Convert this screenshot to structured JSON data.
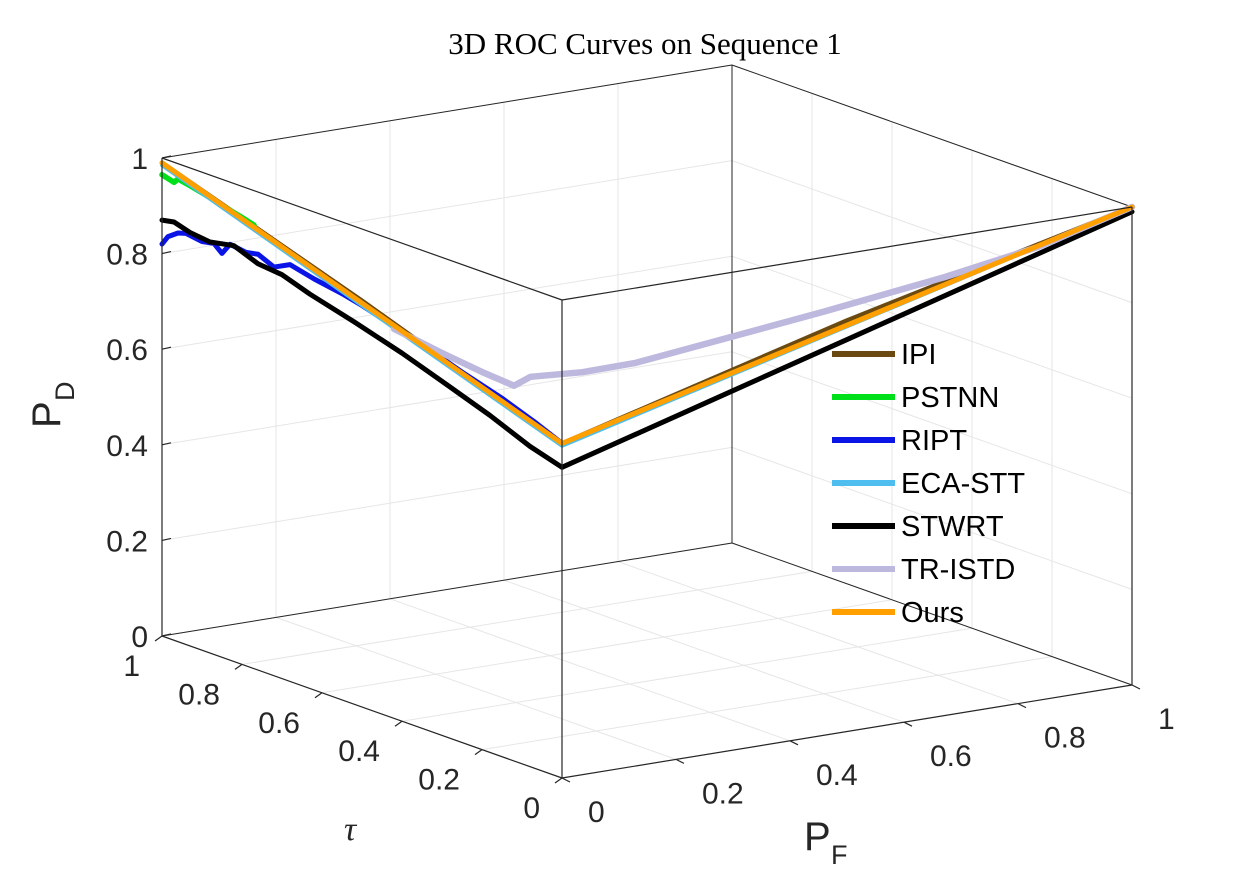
{
  "chart_data": {
    "type": "line",
    "title": "3D ROC Curves on Sequence 1",
    "axes": {
      "x": {
        "label": "P",
        "subscript": "F",
        "range": [
          0,
          1
        ],
        "ticks": [
          "0",
          "0.2",
          "0.4",
          "0.6",
          "0.8",
          "1"
        ]
      },
      "y": {
        "label": "τ",
        "range": [
          0,
          1
        ],
        "ticks": [
          "0",
          "0.2",
          "0.4",
          "0.6",
          "0.8",
          "1"
        ]
      },
      "z": {
        "label": "P",
        "subscript": "D",
        "range": [
          0,
          1
        ],
        "ticks": [
          "0",
          "0.2",
          "0.4",
          "0.6",
          "0.8",
          "1"
        ]
      }
    },
    "grid": true,
    "legend_position": "right",
    "series": [
      {
        "name": "IPI",
        "color": "#6B4A12",
        "width": 4.5,
        "points": [
          [
            0,
            1,
            0.99
          ],
          [
            0,
            0.5,
            0.85
          ],
          [
            0,
            0,
            0.7
          ],
          [
            0.5,
            0,
            0.86
          ],
          [
            1,
            0,
            1
          ]
        ]
      },
      {
        "name": "PSTNN",
        "color": "#00E01A",
        "width": 5.5,
        "points": [
          [
            0,
            1,
            0.965
          ],
          [
            0,
            0.97,
            0.958
          ],
          [
            0,
            0.96,
            0.968
          ],
          [
            0,
            0.93,
            0.963
          ],
          [
            0,
            0.88,
            0.953
          ],
          [
            0,
            0.84,
            0.943
          ],
          [
            0,
            0.8,
            0.935
          ],
          [
            0,
            0.77,
            0.928
          ]
        ]
      },
      {
        "name": "RIPT",
        "color": "#0A14E6",
        "width": 5,
        "points": [
          [
            0,
            1,
            0.82
          ],
          [
            0,
            0.985,
            0.84
          ],
          [
            0,
            0.96,
            0.855
          ],
          [
            0,
            0.94,
            0.86
          ],
          [
            0,
            0.9,
            0.855
          ],
          [
            0,
            0.87,
            0.86
          ],
          [
            0,
            0.85,
            0.845
          ],
          [
            0,
            0.83,
            0.87
          ],
          [
            0,
            0.79,
            0.865
          ],
          [
            0,
            0.76,
            0.87
          ],
          [
            0,
            0.72,
            0.855
          ],
          [
            0,
            0.68,
            0.872
          ],
          [
            0,
            0.62,
            0.86
          ],
          [
            0,
            0.55,
            0.85
          ],
          [
            0,
            0.5,
            0.84
          ],
          [
            0,
            0.42,
            0.82
          ],
          [
            0,
            0.34,
            0.8
          ],
          [
            0,
            0.25,
            0.775
          ],
          [
            0,
            0.15,
            0.75
          ],
          [
            0,
            0.07,
            0.725
          ],
          [
            0,
            0,
            0.7
          ]
        ]
      },
      {
        "name": "ECA-STT",
        "color": "#4DBEEE",
        "width": 4,
        "points": [
          [
            0,
            1,
            0.985
          ],
          [
            0,
            0,
            0.695
          ],
          [
            1,
            0,
            1
          ]
        ]
      },
      {
        "name": "STWRT",
        "color": "#000000",
        "width": 5,
        "points": [
          [
            0,
            1,
            0.87
          ],
          [
            0,
            0.97,
            0.875
          ],
          [
            0,
            0.93,
            0.865
          ],
          [
            0,
            0.88,
            0.86
          ],
          [
            0,
            0.82,
            0.87
          ],
          [
            0,
            0.76,
            0.85
          ],
          [
            0,
            0.7,
            0.845
          ],
          [
            0,
            0.63,
            0.825
          ],
          [
            0,
            0.52,
            0.8
          ],
          [
            0,
            0.4,
            0.77
          ],
          [
            0,
            0.28,
            0.735
          ],
          [
            0,
            0.18,
            0.705
          ],
          [
            0,
            0.08,
            0.67
          ],
          [
            0,
            0,
            0.65
          ],
          [
            0.25,
            0,
            0.735
          ],
          [
            0.5,
            0,
            0.82
          ],
          [
            0.75,
            0,
            0.905
          ],
          [
            1,
            0,
            0.99
          ]
        ]
      },
      {
        "name": "TR-ISTD",
        "color": "#BDB8DE",
        "width": 6.5,
        "points": [
          [
            0,
            0.42,
            0.815
          ],
          [
            0,
            0.3,
            0.8
          ],
          [
            0,
            0.2,
            0.79
          ],
          [
            0,
            0.12,
            0.785
          ],
          [
            0.05,
            0.15,
            0.785
          ],
          [
            0.12,
            0.12,
            0.79
          ],
          [
            0.2,
            0.1,
            0.8
          ],
          [
            0.35,
            0.08,
            0.83
          ],
          [
            0.5,
            0.06,
            0.86
          ],
          [
            0.7,
            0.04,
            0.9
          ],
          [
            0.85,
            0.02,
            0.94
          ],
          [
            1,
            0,
            1
          ]
        ]
      },
      {
        "name": "Ours",
        "color": "#FFA000",
        "width": 5,
        "points": [
          [
            0,
            1,
            0.99
          ],
          [
            0,
            0,
            0.7
          ],
          [
            1,
            0,
            1
          ]
        ]
      }
    ]
  }
}
